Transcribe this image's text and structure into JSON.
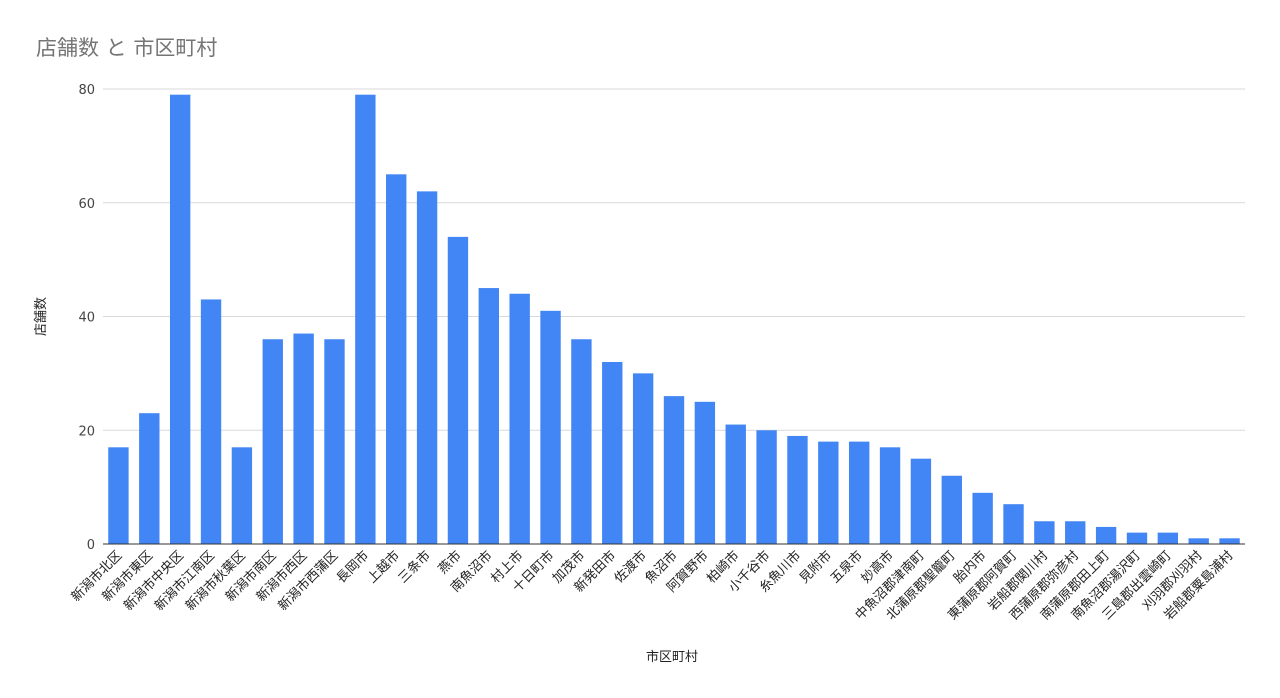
{
  "chart_data": {
    "type": "bar",
    "title": "店舗数 と 市区町村",
    "xlabel": "市区町村",
    "ylabel": "店舗数",
    "ylim": [
      0,
      80
    ],
    "yticks": [
      0,
      20,
      40,
      60,
      80
    ],
    "grid": true,
    "bar_color": "#4285f4",
    "categories": [
      "新潟市北区",
      "新潟市東区",
      "新潟市中央区",
      "新潟市江南区",
      "新潟市秋葉区",
      "新潟市南区",
      "新潟市西区",
      "新潟市西蒲区",
      "長岡市",
      "上越市",
      "三条市",
      "燕市",
      "南魚沼市",
      "村上市",
      "十日町市",
      "加茂市",
      "新発田市",
      "佐渡市",
      "魚沼市",
      "阿賀野市",
      "柏崎市",
      "小千谷市",
      "糸魚川市",
      "見附市",
      "五泉市",
      "妙高市",
      "中魚沼郡津南町",
      "北蒲原郡聖籠町",
      "胎内市",
      "東蒲原郡阿賀町",
      "岩船郡関川村",
      "西蒲原郡弥彦村",
      "南蒲原郡田上町",
      "南魚沼郡湯沢町",
      "三島郡出雲崎町",
      "刈羽郡刈羽村",
      "岩船郡粟島浦村"
    ],
    "values": [
      17,
      23,
      79,
      43,
      17,
      36,
      37,
      36,
      79,
      65,
      62,
      54,
      45,
      44,
      41,
      36,
      32,
      30,
      26,
      25,
      21,
      20,
      19,
      18,
      18,
      17,
      15,
      12,
      9,
      7,
      4,
      4,
      3,
      2,
      2,
      1,
      1
    ]
  }
}
